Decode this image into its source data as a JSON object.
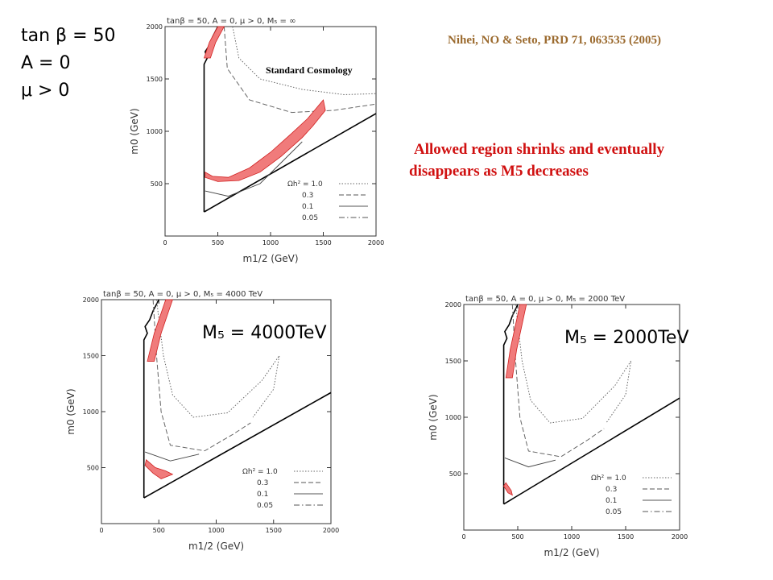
{
  "header": {
    "params": [
      "tan β = 50",
      "A = 0",
      "μ > 0"
    ],
    "citation": "Nihei, NO & Seto, PRD 71, 063535 (2005)",
    "note_line1": "Allowed region shrinks and eventually",
    "note_line2": "disappears as M5 decreases",
    "standard_label": "Standard Cosmology"
  },
  "colors": {
    "allowed": "#f07b7b",
    "allowed_edge": "#d02020",
    "citation": "#9b6a2e",
    "note": "#d01010"
  },
  "chart_data": [
    {
      "type": "line",
      "title": "tanβ = 50,   A = 0,   μ > 0,   M₅ = ∞",
      "xlabel": "m1/2   (GeV)",
      "ylabel": "m0   (GeV)",
      "xlim": [
        0,
        2000
      ],
      "ylim": [
        0,
        2000
      ],
      "xticks": [
        "0",
        "500",
        "1000",
        "1500",
        "2000"
      ],
      "yticks": [
        "500",
        "1000",
        "1500",
        "2000"
      ],
      "legend_title": "Ωh² = 1.0",
      "legend": [
        "0.3",
        "0.1",
        "0.05"
      ],
      "annotation": "",
      "allowed_band": [
        [
          370,
          1700
        ],
        [
          420,
          1850
        ],
        [
          500,
          2000
        ]
      ],
      "allowed_region2": [
        [
          380,
          610
        ],
        [
          450,
          570
        ],
        [
          600,
          560
        ],
        [
          800,
          650
        ],
        [
          1000,
          800
        ],
        [
          1200,
          980
        ],
        [
          1350,
          1120
        ],
        [
          1500,
          1300
        ],
        [
          1520,
          1200
        ],
        [
          1400,
          1050
        ],
        [
          1300,
          940
        ],
        [
          1100,
          760
        ],
        [
          900,
          610
        ],
        [
          700,
          530
        ],
        [
          500,
          520
        ],
        [
          380,
          560
        ]
      ]
    },
    {
      "type": "line",
      "title": "tanβ = 50,   A = 0,   μ > 0,   M₅ = 4000 TeV",
      "xlabel": "m1/2   (GeV)",
      "ylabel": "m0   (GeV)",
      "xlim": [
        0,
        2000
      ],
      "ylim": [
        0,
        2000
      ],
      "xticks": [
        "0",
        "500",
        "1000",
        "1500",
        "2000"
      ],
      "yticks": [
        "500",
        "1000",
        "1500",
        "2000"
      ],
      "legend_title": "Ωh² = 1.0",
      "legend": [
        "0.3",
        "0.1",
        "0.05"
      ],
      "annotation": "M₅ = 4000TeV",
      "allowed_band": [
        [
          400,
          1450
        ],
        [
          460,
          1700
        ],
        [
          560,
          2000
        ]
      ],
      "allowed_region2": [
        [
          380,
          520
        ],
        [
          450,
          450
        ],
        [
          520,
          400
        ],
        [
          620,
          440
        ],
        [
          560,
          470
        ],
        [
          470,
          500
        ],
        [
          390,
          570
        ]
      ]
    },
    {
      "type": "line",
      "title": "tanβ = 50,   A = 0,   μ > 0,   M₅ = 2000 TeV",
      "xlabel": "m1/2   (GeV)",
      "ylabel": "m0   (GeV)",
      "xlim": [
        0,
        2000
      ],
      "ylim": [
        0,
        2000
      ],
      "xticks": [
        "0",
        "500",
        "1000",
        "1500",
        "2000"
      ],
      "yticks": [
        "500",
        "1000",
        "1500",
        "2000"
      ],
      "legend_title": "Ωh² = 1.0",
      "legend": [
        "0.3",
        "0.1",
        "0.05"
      ],
      "annotation": "M₅ = 2000TeV",
      "allowed_band": [
        [
          390,
          1350
        ],
        [
          430,
          1600
        ],
        [
          520,
          2000
        ]
      ],
      "allowed_region2": [
        [
          370,
          390
        ],
        [
          410,
          330
        ],
        [
          450,
          310
        ],
        [
          440,
          350
        ],
        [
          390,
          420
        ]
      ]
    }
  ]
}
